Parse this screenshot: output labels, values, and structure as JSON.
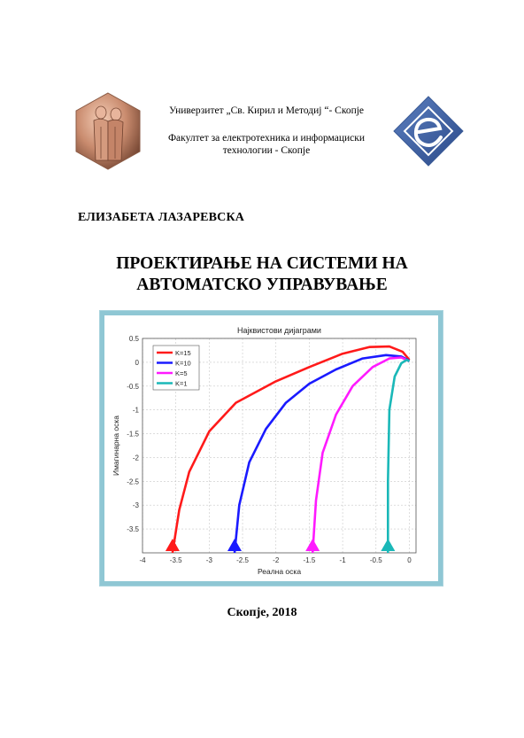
{
  "header": {
    "university": "Универзитет „Св. Кирил и Методиј “- Скопје",
    "faculty_line1": "Факултет за електротехника и информациски",
    "faculty_line2": "технологии - Скопје",
    "university_logo_icon": "saints-medallion-icon",
    "faculty_logo_icon": "feit-e-diamond-icon"
  },
  "author": "ЕЛИЗАБЕТА ЛАЗАРЕВСКА",
  "title_line1": "ПРОЕКТИРАЊЕ НА СИСТЕМИ НА",
  "title_line2": "АВТОМАТСКО УПРАВУВАЊЕ",
  "footer": "Скопје, 2018",
  "colors": {
    "frame": "#8fc7d4",
    "red": "#ff1a1a",
    "blue": "#1a1aff",
    "magenta": "#ff1aff",
    "cyan": "#1ab8b8"
  },
  "chart_data": {
    "type": "line",
    "title": "Најквистови дијаграми",
    "xlabel": "Реална оска",
    "ylabel": "Имагинарна оска",
    "xlim": [
      -4,
      0.1
    ],
    "ylim": [
      -4.0,
      0.5
    ],
    "xticks": [
      -4,
      -3.5,
      -3,
      -2.5,
      -2,
      -1.5,
      -1,
      -0.5,
      0
    ],
    "yticks": [
      0.5,
      0,
      -0.5,
      -1,
      -1.5,
      -2,
      -2.5,
      -3,
      -3.5
    ],
    "xtick_labels": [
      "-4",
      "-3.5",
      "-3",
      "-2.5",
      "-2",
      "-1.5",
      "-1",
      "-0.5",
      "0"
    ],
    "ytick_labels": [
      "0.5",
      "0",
      "-0.5",
      "-1",
      "-1.5",
      "-2",
      "-2.5",
      "-3",
      "-3.5"
    ],
    "grid": true,
    "legend_position": "top-left",
    "series": [
      {
        "name": "K=15",
        "color": "#ff1a1a",
        "x": [
          -3.55,
          -3.45,
          -3.3,
          -3.0,
          -2.6,
          -2.0,
          -1.5,
          -1.0,
          -0.6,
          -0.3,
          -0.1,
          0.0
        ],
        "y": [
          -4.0,
          -3.1,
          -2.3,
          -1.45,
          -0.85,
          -0.4,
          -0.1,
          0.18,
          0.32,
          0.33,
          0.22,
          0.05
        ]
      },
      {
        "name": "K=10",
        "color": "#1a1aff",
        "x": [
          -2.62,
          -2.55,
          -2.4,
          -2.15,
          -1.85,
          -1.5,
          -1.1,
          -0.7,
          -0.35,
          -0.12,
          0.0
        ],
        "y": [
          -4.0,
          -3.0,
          -2.1,
          -1.4,
          -0.85,
          -0.45,
          -0.15,
          0.08,
          0.15,
          0.12,
          0.03
        ]
      },
      {
        "name": "K=5",
        "color": "#ff1aff",
        "x": [
          -1.45,
          -1.4,
          -1.3,
          -1.1,
          -0.85,
          -0.55,
          -0.3,
          -0.12,
          0.0
        ],
        "y": [
          -4.0,
          -2.9,
          -1.9,
          -1.1,
          -0.5,
          -0.1,
          0.08,
          0.1,
          0.02
        ]
      },
      {
        "name": "K=1",
        "color": "#1ab8b8",
        "x": [
          -0.32,
          -0.32,
          -0.3,
          -0.22,
          -0.12,
          -0.04,
          0.0
        ],
        "y": [
          -4.0,
          -2.5,
          -1.0,
          -0.3,
          -0.02,
          0.05,
          0.02
        ]
      }
    ]
  }
}
